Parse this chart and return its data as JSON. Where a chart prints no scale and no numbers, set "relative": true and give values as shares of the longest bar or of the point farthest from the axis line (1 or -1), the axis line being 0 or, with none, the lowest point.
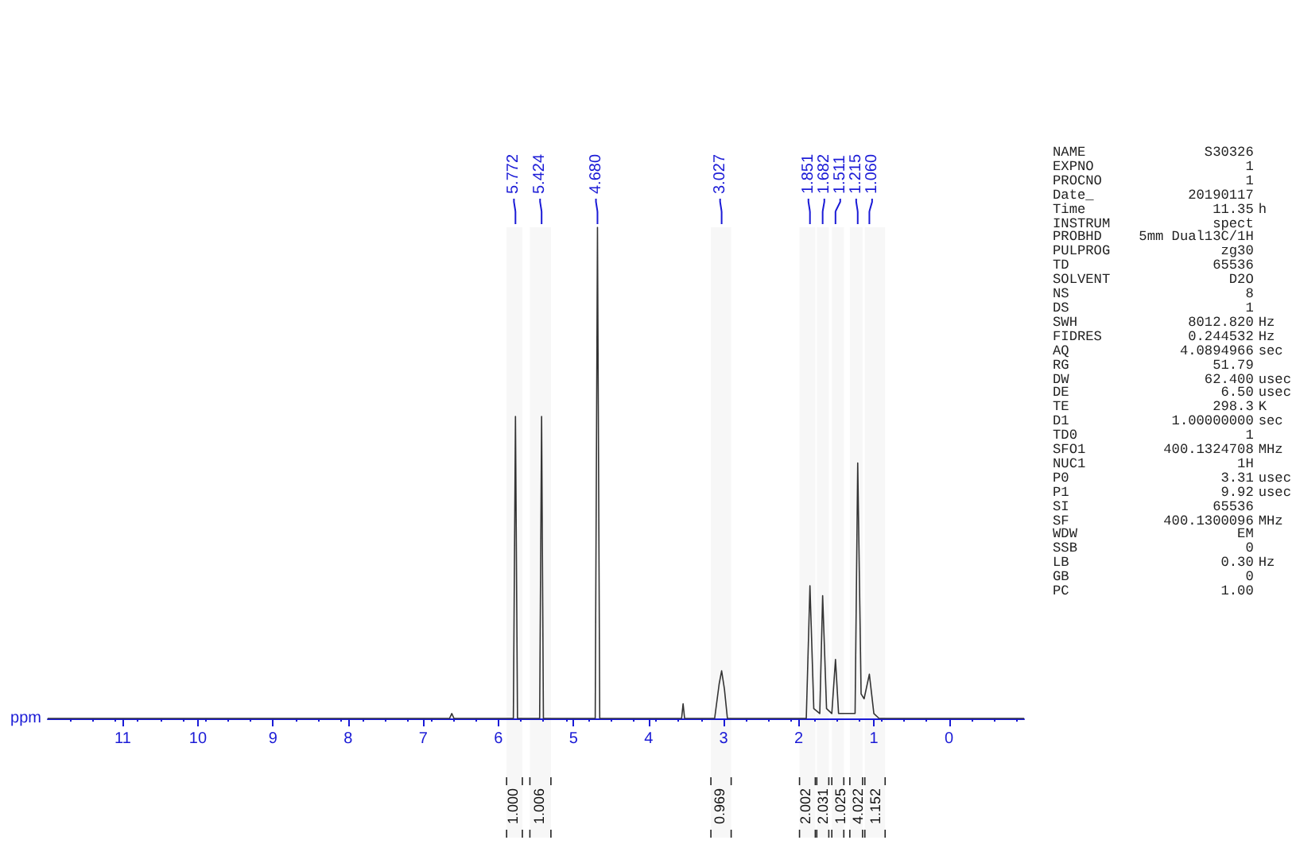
{
  "chart_data": [
    {
      "type": "line",
      "relative": true,
      "color": "#333333",
      "xlabel": "ppm",
      "xlim": [
        12,
        -1
      ],
      "xticks": [
        11,
        10,
        9,
        8,
        7,
        6,
        5,
        4,
        3,
        2,
        1,
        0
      ],
      "x": [
        12,
        6.65,
        6.62,
        6.59,
        5.8,
        5.772,
        5.745,
        5.45,
        5.424,
        5.4,
        4.71,
        4.68,
        4.65,
        3.56,
        3.54,
        3.52,
        3.12,
        3.06,
        3.027,
        2.99,
        2.95,
        1.9,
        1.851,
        1.8,
        1.72,
        1.682,
        1.63,
        1.56,
        1.511,
        1.47,
        1.25,
        1.215,
        1.17,
        1.13,
        1.06,
        1.0,
        0.93,
        -1
      ],
      "values": [
        0,
        0,
        0.01,
        0,
        0,
        0.615,
        0,
        0,
        0.615,
        0,
        0,
        1,
        0,
        0,
        0.03,
        0,
        0,
        0.07,
        0.097,
        0.06,
        0,
        0,
        0.27,
        0.02,
        0.01,
        0.25,
        0.02,
        0.01,
        0.12,
        0.01,
        0.01,
        0.52,
        0.05,
        0.04,
        0.09,
        0.01,
        0,
        0
      ],
      "ref_lines": [
        {
          "axis": "x",
          "value": 5.772,
          "label": "5.772"
        },
        {
          "axis": "x",
          "value": 5.424,
          "label": "5.424"
        },
        {
          "axis": "x",
          "value": 4.68,
          "label": "4.680"
        },
        {
          "axis": "x",
          "value": 3.027,
          "label": "3.027"
        },
        {
          "axis": "x",
          "value": 1.851,
          "label": "1.851"
        },
        {
          "axis": "x",
          "value": 1.682,
          "label": "1.682"
        },
        {
          "axis": "x",
          "value": 1.511,
          "label": "1.511"
        },
        {
          "axis": "x",
          "value": 1.215,
          "label": "1.215"
        },
        {
          "axis": "x",
          "value": 1.06,
          "label": "1.060"
        }
      ],
      "bands": [
        {
          "axis": "x",
          "from": 5.89,
          "to": 5.68,
          "label": "1.000"
        },
        {
          "axis": "x",
          "from": 5.58,
          "to": 5.3,
          "label": "1.006"
        },
        {
          "axis": "x",
          "from": 3.17,
          "to": 2.9,
          "label": "0.969"
        },
        {
          "axis": "x",
          "from": 1.99,
          "to": 1.78,
          "label": "2.002"
        },
        {
          "axis": "x",
          "from": 1.76,
          "to": 1.6,
          "label": "2.031"
        },
        {
          "axis": "x",
          "from": 1.56,
          "to": 1.4,
          "label": "1.025"
        },
        {
          "axis": "x",
          "from": 1.32,
          "to": 1.15,
          "label": "4.022"
        },
        {
          "axis": "x",
          "from": 1.12,
          "to": 0.85,
          "label": "1.152"
        }
      ]
    },
    {
      "type": "other",
      "annotations": [
        "NAME\tS30326",
        "EXPNO\t1",
        "PROCNO\t1",
        "Date_\t20190117",
        "Time\t11.35\th",
        "INSTRUM\tspect",
        "PROBHD\t5mm Dual13C/1H",
        "PULPROG\tzg30",
        "TD\t65536",
        "SOLVENT\tD2O",
        "NS\t8",
        "DS\t1",
        "SWH\t8012.820\tHz",
        "FIDRES\t0.244532\tHz",
        "AQ\t4.0894966\tsec",
        "RG\t51.79",
        "DW\t62.400\tusec",
        "DE\t6.50\tusec",
        "TE\t298.3\tK",
        "D1\t1.00000000\tsec",
        "TD0\t1",
        "SFO1\t400.1324708\tMHz",
        "NUC1\t1H",
        "P0\t3.31\tusec",
        "P1\t9.92\tusec",
        "SI\t65536",
        "SF\t400.1300096\tMHz",
        "WDW\tEM",
        "SSB\t0",
        "LB\t0.30\tHz",
        "GB\t0",
        "PC\t1.00"
      ]
    }
  ]
}
